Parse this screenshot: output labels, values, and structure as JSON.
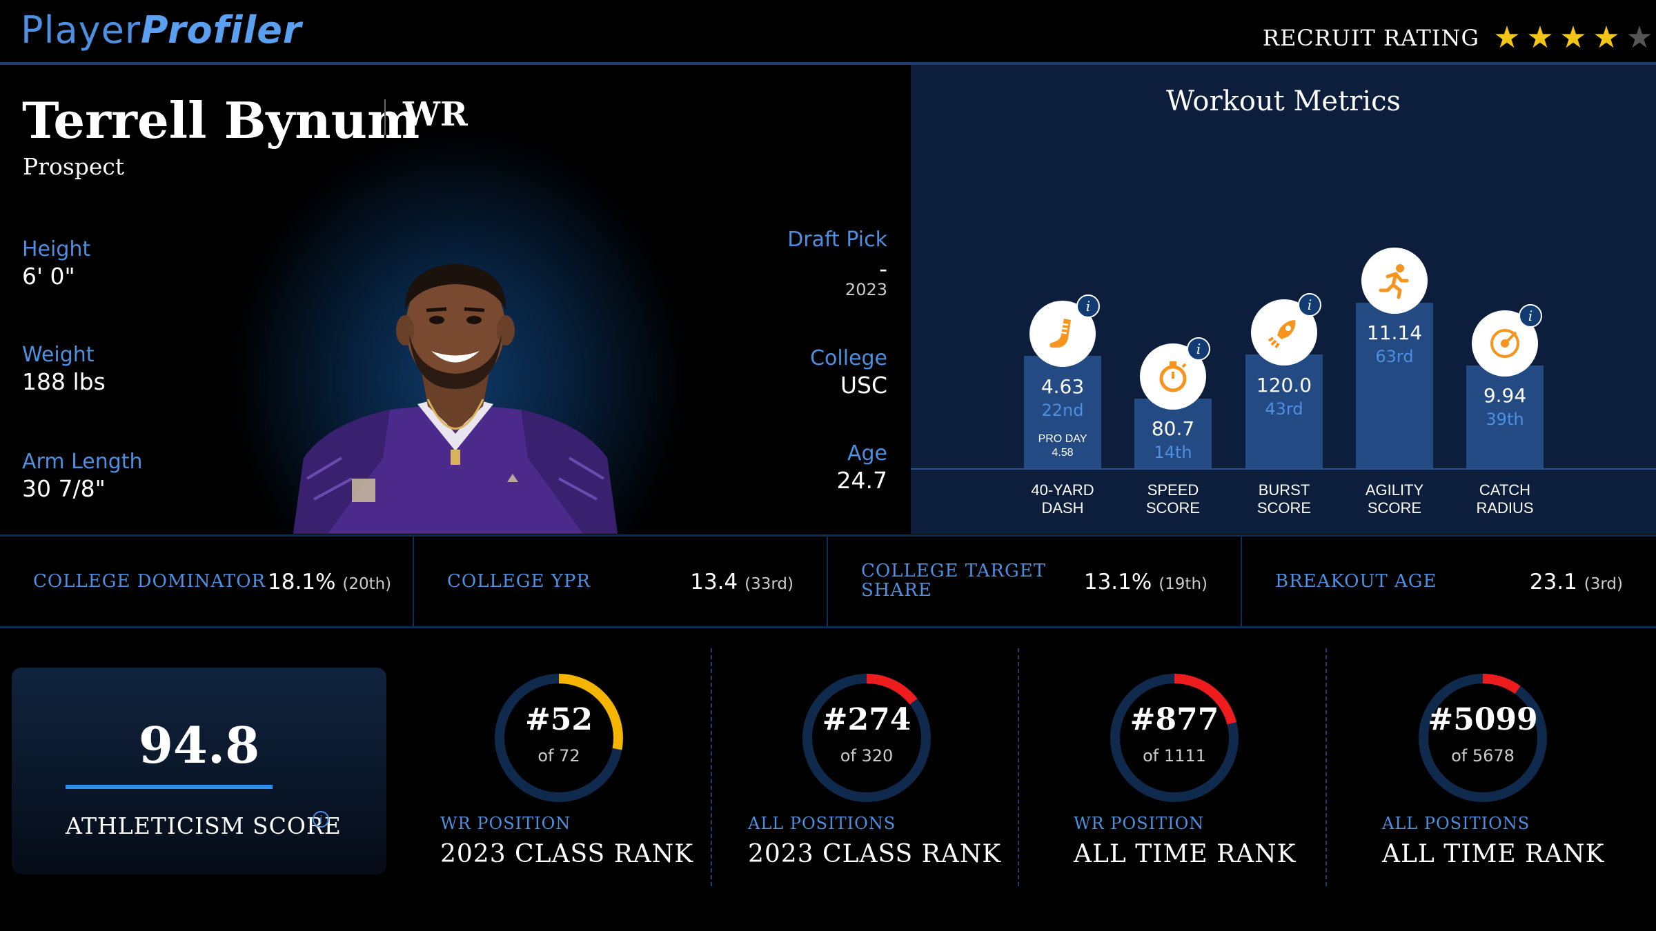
{
  "header": {
    "logo_part1": "Player",
    "logo_part2": "Profiler",
    "recruit_label": "RECRUIT RATING",
    "recruit_stars": 4,
    "recruit_stars_max": 5,
    "star_color": "#f5c518"
  },
  "player": {
    "name": "Terrell Bynum",
    "position": "WR",
    "status": "Prospect",
    "height_label": "Height",
    "height": "6' 0\"",
    "weight_label": "Weight",
    "weight": "188 lbs",
    "arm_label": "Arm Length",
    "arm": "30 7/8\"",
    "draft_label": "Draft Pick",
    "draft_pick": "-",
    "draft_year": "2023",
    "college_label": "College",
    "college": "USC",
    "age_label": "Age",
    "age": "24.7"
  },
  "workout": {
    "title": "Workout Metrics",
    "metrics": [
      {
        "icon": "shoe-icon",
        "value": "4.63",
        "percentile": "22nd",
        "name1": "40-YARD",
        "name2": "DASH",
        "extra1": "PRO DAY",
        "extra2": "4.58",
        "info": "i"
      },
      {
        "icon": "stopwatch-icon",
        "value": "80.7",
        "percentile": "14th",
        "name1": "SPEED",
        "name2": "SCORE",
        "info": "i"
      },
      {
        "icon": "rocket-icon",
        "value": "120.0",
        "percentile": "43rd",
        "name1": "BURST",
        "name2": "SCORE",
        "info": "i"
      },
      {
        "icon": "runner-icon",
        "value": "11.14",
        "percentile": "63rd",
        "name1": "AGILITY",
        "name2": "SCORE"
      },
      {
        "icon": "target-icon",
        "value": "9.94",
        "percentile": "39th",
        "name1": "CATCH",
        "name2": "RADIUS",
        "info": "i"
      }
    ],
    "icon_color": "#f7941d"
  },
  "stats": [
    {
      "label": "COLLEGE DOMINATOR",
      "value": "18.1%",
      "rank": "(20th)"
    },
    {
      "label": "COLLEGE YPR",
      "value": "13.4",
      "rank": "(33rd)"
    },
    {
      "label1": "COLLEGE TARGET",
      "label2": "SHARE",
      "value": "13.1%",
      "rank": "(19th)"
    },
    {
      "label": "BREAKOUT AGE",
      "value": "23.1",
      "rank": "(3rd)"
    }
  ],
  "athleticism": {
    "score": "94.8",
    "label": "ATHLETICISM SCORE",
    "info": "i"
  },
  "ranks": [
    {
      "num": "#52",
      "of": "of 72",
      "sub": "WR POSITION",
      "main": "2023 CLASS RANK",
      "fraction": 0.28,
      "color": "#f5b400"
    },
    {
      "num": "#274",
      "of": "of 320",
      "sub": "ALL POSITIONS",
      "main": "2023 CLASS RANK",
      "fraction": 0.145,
      "color": "#ee1c1c"
    },
    {
      "num": "#877",
      "of": "of 1111",
      "sub": "WR POSITION",
      "main": "ALL TIME RANK",
      "fraction": 0.21,
      "color": "#ee1c1c"
    },
    {
      "num": "#5099",
      "of": "of 5678",
      "sub": "ALL POSITIONS",
      "main": "ALL TIME RANK",
      "fraction": 0.1,
      "color": "#ee1c1c"
    }
  ]
}
